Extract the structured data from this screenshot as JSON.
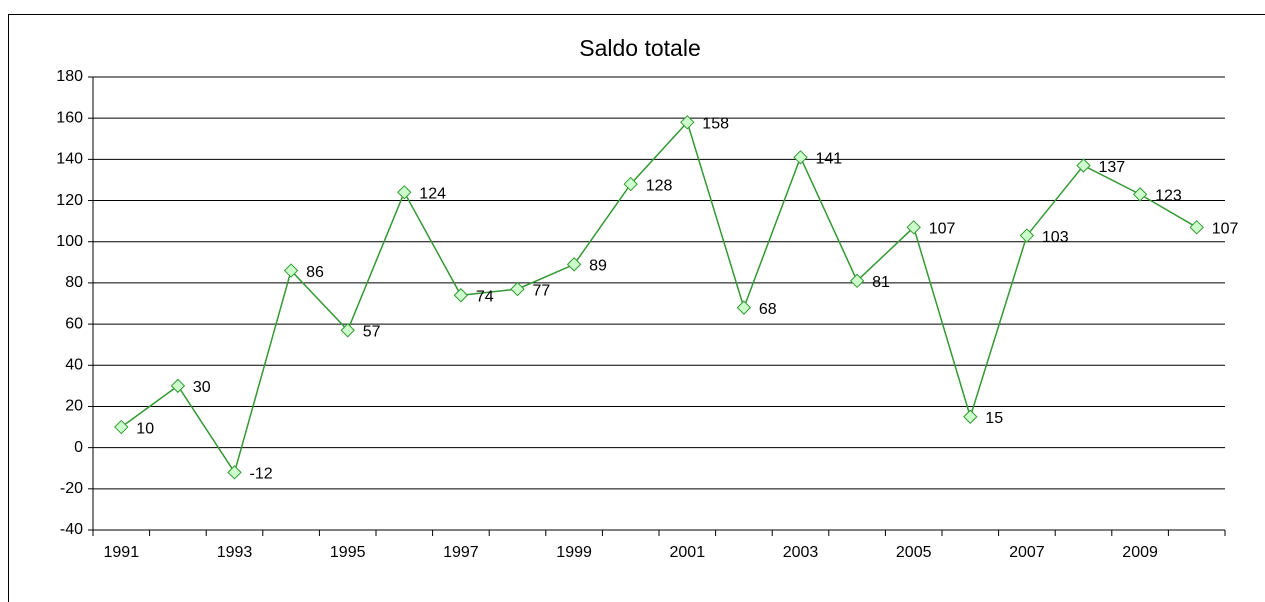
{
  "chart_data": {
    "type": "line",
    "title": "Saldo totale",
    "categories": [
      "1991",
      null,
      "1993",
      null,
      "1995",
      null,
      "1997",
      null,
      "1999",
      null,
      "2001",
      null,
      "2003",
      null,
      "2005",
      null,
      "2007",
      null,
      "2009",
      null
    ],
    "series": [
      {
        "name": "Saldo totale",
        "color": "#339933",
        "marker_fill": "#ccffcc",
        "values": [
          10,
          30,
          -12,
          86,
          57,
          124,
          74,
          77,
          89,
          128,
          158,
          68,
          141,
          81,
          107,
          15,
          103,
          137,
          123,
          107
        ]
      }
    ],
    "ylim": [
      -40,
      180
    ],
    "yticks": [
      -40,
      -20,
      0,
      20,
      40,
      60,
      80,
      100,
      120,
      140,
      160,
      180
    ],
    "grid": true
  }
}
